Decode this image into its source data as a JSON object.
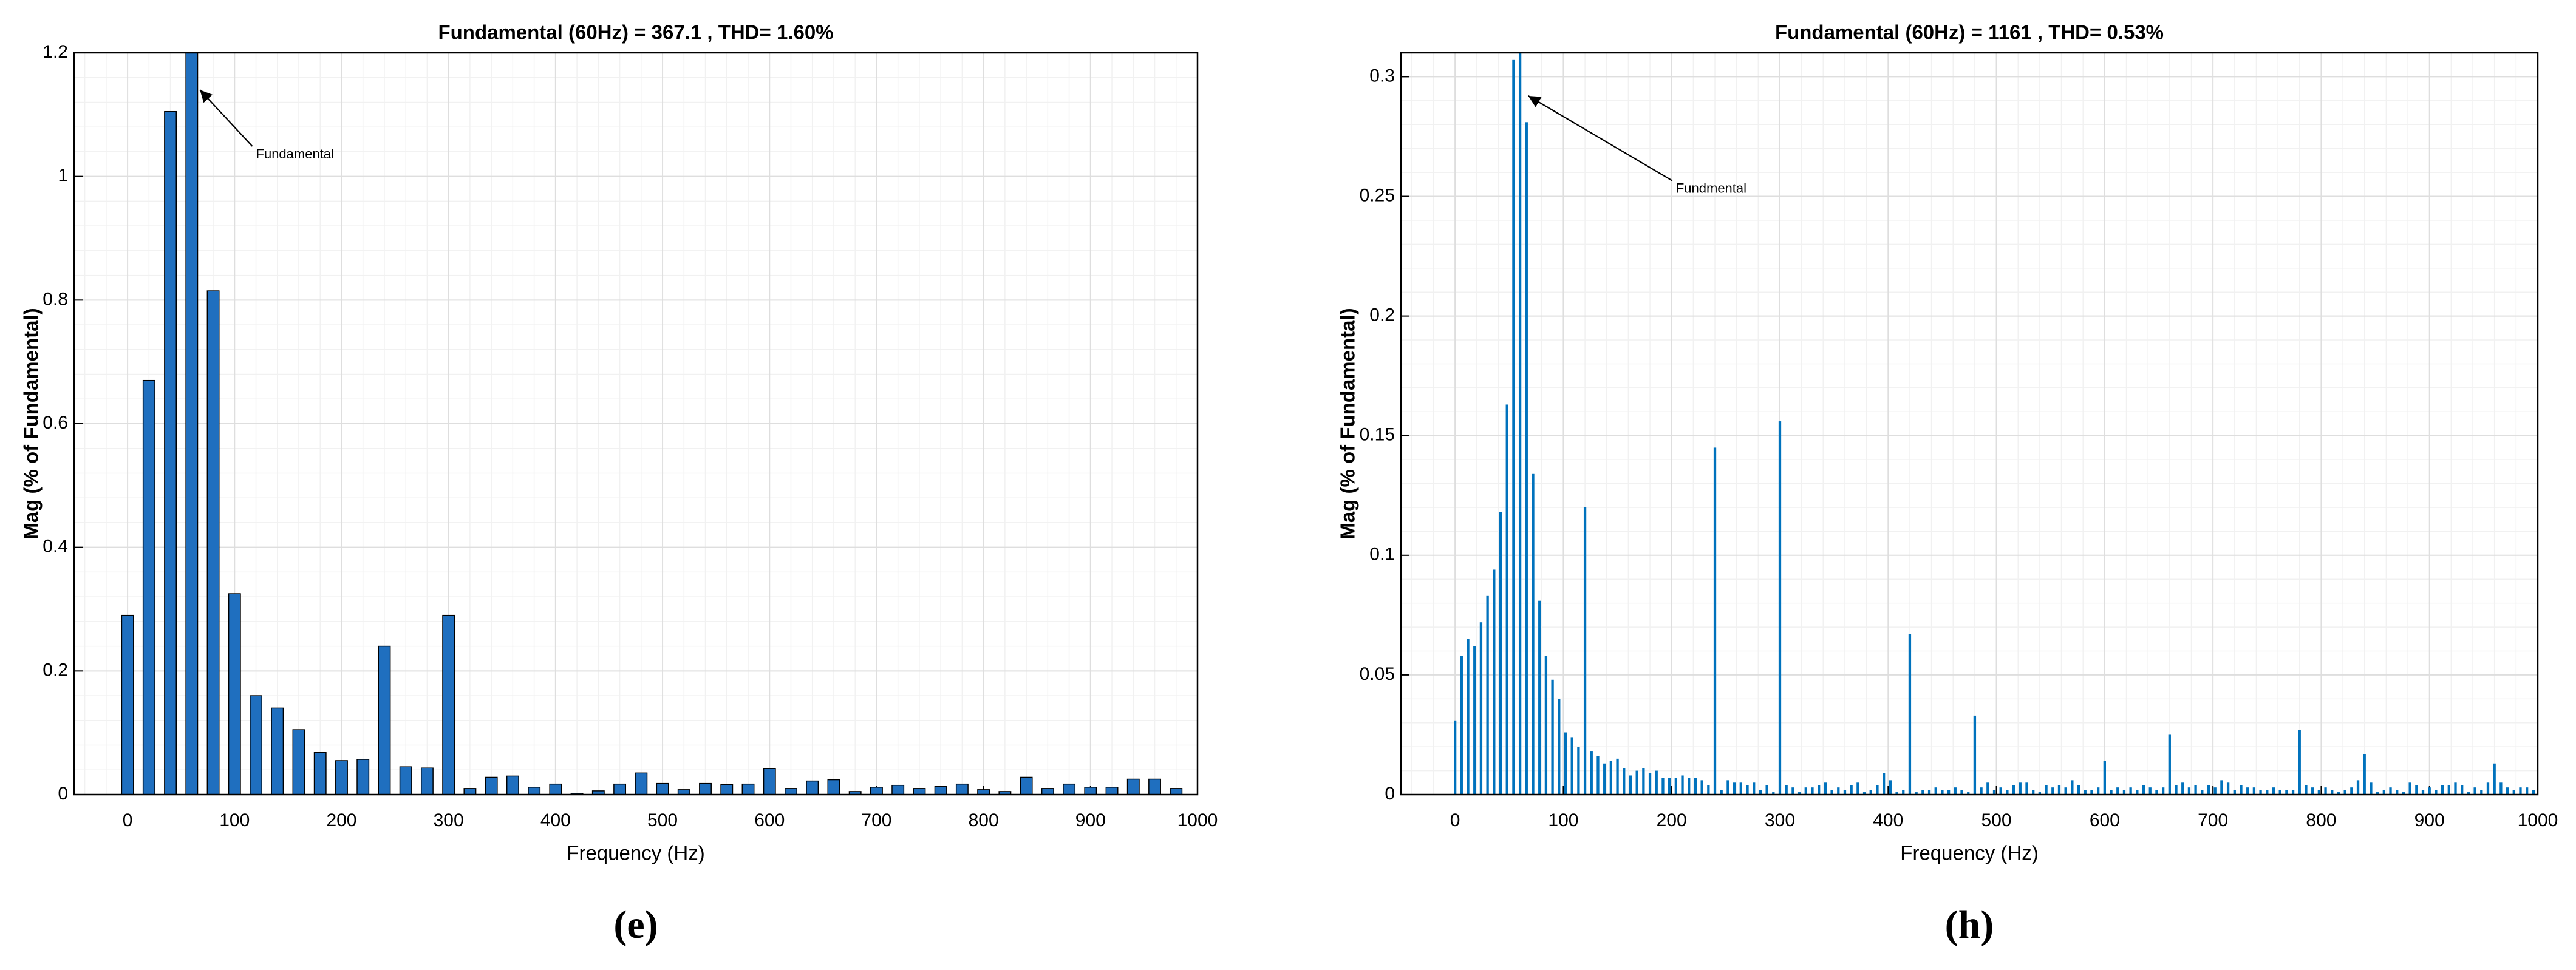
{
  "chart_data": [
    {
      "type": "bar",
      "title": "Fundamental (60Hz) = 367.1 , THD= 1.60%",
      "xlabel": "Frequency (Hz)",
      "ylabel": "Mag (% of Fundamental)",
      "panel_label": "(e)",
      "annotation": "Fundamental",
      "x": [
        0,
        20,
        40,
        60,
        80,
        100,
        120,
        140,
        160,
        180,
        200,
        220,
        240,
        260,
        280,
        300,
        320,
        340,
        360,
        380,
        400,
        420,
        440,
        460,
        480,
        500,
        520,
        540,
        560,
        580,
        600,
        620,
        640,
        660,
        680,
        700,
        720,
        740,
        760,
        780,
        800,
        820,
        840,
        860,
        880,
        900,
        920,
        940,
        960,
        980
      ],
      "values": [
        0.29,
        0.67,
        1.105,
        1.2,
        0.815,
        0.325,
        0.16,
        0.14,
        0.105,
        0.068,
        0.055,
        0.057,
        0.24,
        0.045,
        0.043,
        0.29,
        0.01,
        0.028,
        0.03,
        0.012,
        0.017,
        0.002,
        0.006,
        0.017,
        0.035,
        0.018,
        0.008,
        0.018,
        0.016,
        0.017,
        0.042,
        0.01,
        0.022,
        0.024,
        0.005,
        0.012,
        0.015,
        0.01,
        0.013,
        0.017,
        0.008,
        0.005,
        0.028,
        0.01,
        0.017,
        0.012,
        0.012,
        0.025,
        0.025,
        0.01
      ],
      "color": "#1f6fbf",
      "edgecolor": "#000000",
      "xlim": [
        -50,
        1000
      ],
      "ylim": [
        0,
        1.2
      ],
      "xticks": [
        0,
        100,
        200,
        300,
        400,
        500,
        600,
        700,
        800,
        900,
        1000
      ],
      "yticks": [
        0,
        0.2,
        0.4,
        0.6,
        0.8,
        1,
        1.2
      ],
      "grid": true
    },
    {
      "type": "bar",
      "title": "Fundamental (60Hz) = 1161 , THD= 0.53%",
      "xlabel": "Frequency (Hz)",
      "ylabel": "Mag (% of Fundamental)",
      "panel_label": "(h)",
      "annotation": "Fundmental",
      "x": [
        0,
        6,
        12,
        18,
        24,
        30,
        36,
        42,
        48,
        54,
        60,
        66,
        72,
        78,
        84,
        90,
        96,
        102,
        108,
        114,
        120,
        126,
        132,
        138,
        144,
        150,
        156,
        162,
        168,
        174,
        180,
        186,
        192,
        198,
        204,
        210,
        216,
        222,
        228,
        234,
        240,
        246,
        252,
        258,
        264,
        270,
        276,
        282,
        288,
        294,
        300,
        306,
        312,
        318,
        324,
        330,
        336,
        342,
        348,
        354,
        360,
        366,
        372,
        378,
        384,
        390,
        396,
        402,
        408,
        414,
        420,
        426,
        432,
        438,
        444,
        450,
        456,
        462,
        468,
        474,
        480,
        486,
        492,
        498,
        504,
        510,
        516,
        522,
        528,
        534,
        540,
        546,
        552,
        558,
        564,
        570,
        576,
        582,
        588,
        594,
        600,
        606,
        612,
        618,
        624,
        630,
        636,
        642,
        648,
        654,
        660,
        666,
        672,
        678,
        684,
        690,
        696,
        702,
        708,
        714,
        720,
        726,
        732,
        738,
        744,
        750,
        756,
        762,
        768,
        774,
        780,
        786,
        792,
        798,
        804,
        810,
        816,
        822,
        828,
        834,
        840,
        846,
        852,
        858,
        864,
        870,
        876,
        882,
        888,
        894,
        900,
        906,
        912,
        918,
        924,
        930,
        936,
        942,
        948,
        954,
        960,
        966,
        972,
        978,
        984,
        990,
        996
      ],
      "values": [
        0.031,
        0.058,
        0.065,
        0.062,
        0.072,
        0.083,
        0.094,
        0.118,
        0.163,
        0.307,
        0.31,
        0.281,
        0.134,
        0.081,
        0.058,
        0.048,
        0.04,
        0.026,
        0.024,
        0.02,
        0.12,
        0.018,
        0.016,
        0.013,
        0.014,
        0.015,
        0.011,
        0.008,
        0.01,
        0.011,
        0.009,
        0.01,
        0.007,
        0.007,
        0.007,
        0.008,
        0.007,
        0.007,
        0.006,
        0.004,
        0.145,
        0.002,
        0.006,
        0.005,
        0.005,
        0.004,
        0.005,
        0.002,
        0.004,
        0.001,
        0.156,
        0.004,
        0.003,
        0.001,
        0.003,
        0.003,
        0.004,
        0.005,
        0.002,
        0.003,
        0.002,
        0.004,
        0.005,
        0.001,
        0.002,
        0.004,
        0.009,
        0.006,
        0.001,
        0.002,
        0.067,
        0.001,
        0.002,
        0.002,
        0.003,
        0.002,
        0.002,
        0.003,
        0.002,
        0.001,
        0.033,
        0.003,
        0.005,
        0.002,
        0.003,
        0.002,
        0.004,
        0.005,
        0.005,
        0.002,
        0.001,
        0.004,
        0.003,
        0.004,
        0.003,
        0.006,
        0.004,
        0.002,
        0.002,
        0.003,
        0.014,
        0.002,
        0.003,
        0.002,
        0.003,
        0.002,
        0.004,
        0.003,
        0.002,
        0.003,
        0.025,
        0.004,
        0.005,
        0.003,
        0.004,
        0.002,
        0.004,
        0.003,
        0.006,
        0.005,
        0.002,
        0.004,
        0.003,
        0.003,
        0.002,
        0.002,
        0.003,
        0.002,
        0.002,
        0.002,
        0.027,
        0.004,
        0.003,
        0.002,
        0.003,
        0.002,
        0.001,
        0.002,
        0.003,
        0.006,
        0.017,
        0.005,
        0.001,
        0.002,
        0.003,
        0.002,
        0.001,
        0.005,
        0.004,
        0.002,
        0.003,
        0.002,
        0.004,
        0.004,
        0.005,
        0.004,
        0.001,
        0.003,
        0.002,
        0.005,
        0.013,
        0.005,
        0.003,
        0.002,
        0.003,
        0.003,
        0.002
      ],
      "color": "#0072bd",
      "xlim": [
        -50,
        1000
      ],
      "ylim": [
        0,
        0.31
      ],
      "xticks": [
        0,
        100,
        200,
        300,
        400,
        500,
        600,
        700,
        800,
        900,
        1000
      ],
      "yticks": [
        0,
        0.05,
        0.1,
        0.15,
        0.2,
        0.25,
        0.3
      ],
      "grid": true
    }
  ]
}
